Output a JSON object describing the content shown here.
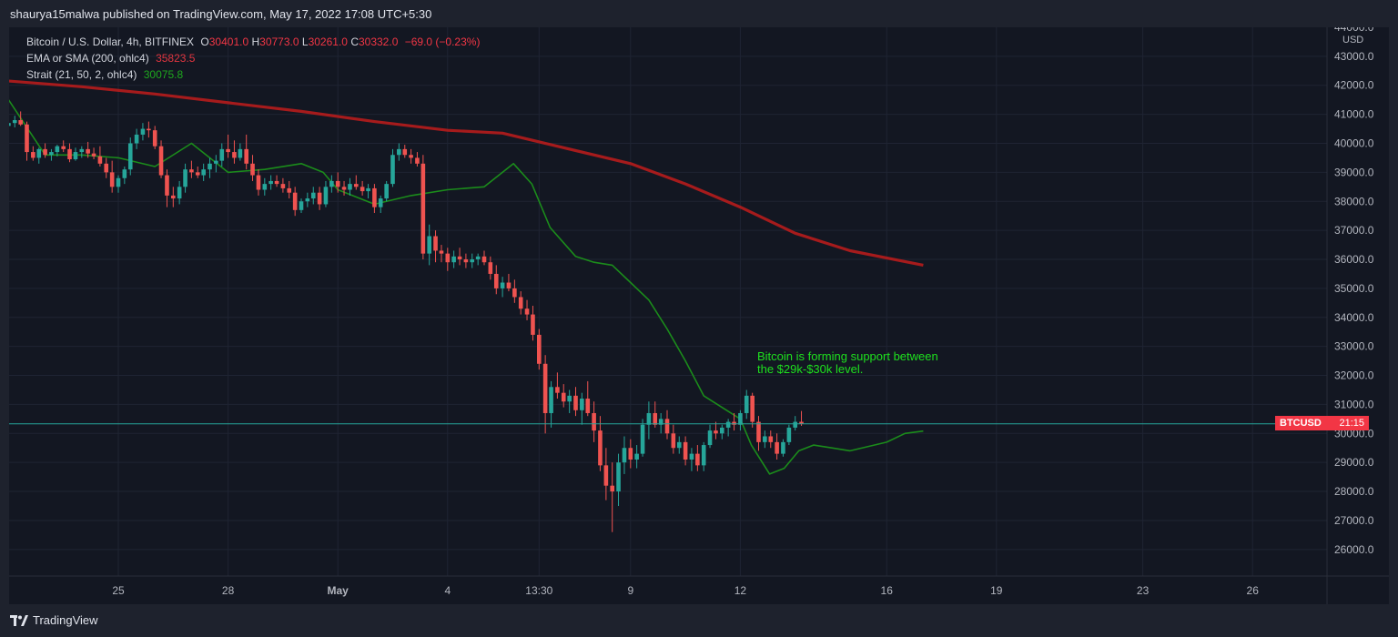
{
  "header": {
    "publish_text": "shaurya15malwa published on TradingView.com, May 17, 2022 17:08 UTC+5:30"
  },
  "legend": {
    "main_label": "Bitcoin / U.S. Dollar, 4h, BITFINEX",
    "o_label": "O",
    "o_value": "30401.0",
    "h_label": "H",
    "h_value": "30773.0",
    "l_label": "L",
    "l_value": "30261.0",
    "c_label": "C",
    "c_value": "30332.0",
    "change": "−69.0 (−0.23%)",
    "ema_label": "EMA or SMA (200, ohlc4)",
    "ema_value": "35823.5",
    "strait_label": "Strait (21, 50, 2, ohlc4)",
    "strait_value": "30075.8"
  },
  "annotation": "Bitcoin is forming support between\nthe $29k-$30k level.",
  "price_tag": {
    "symbol": "BTCUSD",
    "time": "21:15"
  },
  "footer": {
    "logo_text": "TradingView"
  },
  "colors": {
    "up": "#26a69a",
    "down": "#ef5350",
    "ema": "#b71c1c",
    "strait": "#1b8c1b",
    "price_line": "#26a69a",
    "background": "#131722",
    "grid": "#1f2433"
  },
  "chart_data": {
    "type": "candlestick",
    "symbol": "BTCUSD",
    "interval": "4h",
    "exchange": "BITFINEX",
    "currency": "USD",
    "y_ticks": [
      "26000.0",
      "27000.0",
      "28000.0",
      "29000.0",
      "30000.0",
      "31000.0",
      "32000.0",
      "33000.0",
      "34000.0",
      "35000.0",
      "36000.0",
      "37000.0",
      "38000.0",
      "39000.0",
      "40000.0",
      "41000.0",
      "42000.0",
      "43000.0",
      "44000.0"
    ],
    "y_values": [
      26000,
      27000,
      28000,
      29000,
      30000,
      31000,
      32000,
      33000,
      34000,
      35000,
      36000,
      37000,
      38000,
      39000,
      40000,
      41000,
      42000,
      43000,
      44000
    ],
    "ylim": [
      25000,
      44000
    ],
    "x_ticks": [
      {
        "label": "25",
        "bold": false,
        "day": 25
      },
      {
        "label": "28",
        "bold": false,
        "day": 28
      },
      {
        "label": "May",
        "bold": true,
        "day": 31
      },
      {
        "label": "4",
        "bold": false,
        "day": 34
      },
      {
        "label": "13:30",
        "bold": false,
        "day": 36.5
      },
      {
        "label": "9",
        "bold": false,
        "day": 39
      },
      {
        "label": "12",
        "bold": false,
        "day": 42
      },
      {
        "label": "16",
        "bold": false,
        "day": 46
      },
      {
        "label": "19",
        "bold": false,
        "day": 49
      },
      {
        "label": "23",
        "bold": false,
        "day": 53
      },
      {
        "label": "26",
        "bold": false,
        "day": 56
      }
    ],
    "last_price": 30332.0,
    "ema_200": [
      [
        22.0,
        42150
      ],
      [
        24.0,
        41950
      ],
      [
        26.0,
        41700
      ],
      [
        28.0,
        41400
      ],
      [
        30.0,
        41100
      ],
      [
        32.0,
        40750
      ],
      [
        34.0,
        40450
      ],
      [
        35.5,
        40350
      ],
      [
        37.0,
        39900
      ],
      [
        39.0,
        39300
      ],
      [
        40.5,
        38600
      ],
      [
        42.0,
        37800
      ],
      [
        43.5,
        36900
      ],
      [
        45.0,
        36300
      ],
      [
        47.0,
        35800
      ]
    ],
    "strait": [
      [
        22.0,
        41500
      ],
      [
        23.0,
        39600
      ],
      [
        24.0,
        39600
      ],
      [
        25.0,
        39500
      ],
      [
        26.0,
        39200
      ],
      [
        27.0,
        40000
      ],
      [
        28.0,
        39000
      ],
      [
        29.0,
        39100
      ],
      [
        30.0,
        39300
      ],
      [
        30.6,
        39000
      ],
      [
        31.0,
        38400
      ],
      [
        32.0,
        37900
      ],
      [
        33.0,
        38200
      ],
      [
        34.0,
        38400
      ],
      [
        35.0,
        38500
      ],
      [
        35.8,
        39300
      ],
      [
        36.3,
        38600
      ],
      [
        36.8,
        37100
      ],
      [
        37.5,
        36100
      ],
      [
        38.0,
        35900
      ],
      [
        38.5,
        35800
      ],
      [
        39.0,
        35200
      ],
      [
        39.5,
        34600
      ],
      [
        40.0,
        33600
      ],
      [
        40.5,
        32500
      ],
      [
        41.0,
        31300
      ],
      [
        42.0,
        30500
      ],
      [
        42.3,
        29600
      ],
      [
        42.8,
        28600
      ],
      [
        43.2,
        28800
      ],
      [
        43.6,
        29400
      ],
      [
        44.0,
        29600
      ],
      [
        44.5,
        29500
      ],
      [
        45.0,
        29400
      ],
      [
        46.0,
        29700
      ],
      [
        46.5,
        30000
      ],
      [
        47.0,
        30080
      ]
    ],
    "candles": [
      [
        22.0,
        40600,
        40850,
        40500,
        40700
      ],
      [
        22.17,
        40700,
        40950,
        40550,
        40800
      ],
      [
        22.33,
        40800,
        41100,
        40600,
        40650
      ],
      [
        22.5,
        40650,
        40750,
        39400,
        39700
      ],
      [
        22.67,
        39700,
        39900,
        39400,
        39500
      ],
      [
        22.83,
        39500,
        39850,
        39300,
        39800
      ],
      [
        23.0,
        39800,
        40000,
        39500,
        39600
      ],
      [
        23.17,
        39600,
        39800,
        39400,
        39700
      ],
      [
        23.33,
        39700,
        39950,
        39550,
        39900
      ],
      [
        23.5,
        39900,
        40100,
        39700,
        39800
      ],
      [
        23.67,
        39800,
        40000,
        39350,
        39450
      ],
      [
        23.83,
        39450,
        39850,
        39400,
        39700
      ],
      [
        24.0,
        39700,
        39900,
        39500,
        39800
      ],
      [
        24.17,
        39800,
        40050,
        39500,
        39650
      ],
      [
        24.33,
        39650,
        39850,
        39450,
        39550
      ],
      [
        24.5,
        39550,
        39900,
        39200,
        39300
      ],
      [
        24.67,
        39300,
        39500,
        38800,
        39000
      ],
      [
        24.83,
        39000,
        39400,
        38300,
        38500
      ],
      [
        25.0,
        38500,
        38900,
        38300,
        38800
      ],
      [
        25.17,
        38800,
        39200,
        38600,
        39100
      ],
      [
        25.33,
        39100,
        40200,
        38900,
        40000
      ],
      [
        25.5,
        40000,
        40500,
        39800,
        40300
      ],
      [
        25.67,
        40300,
        40700,
        40100,
        40500
      ],
      [
        25.83,
        40500,
        40750,
        40200,
        40450
      ],
      [
        26.0,
        40450,
        40600,
        39800,
        39900
      ],
      [
        26.17,
        39900,
        40100,
        38800,
        38900
      ],
      [
        26.33,
        38900,
        39100,
        37800,
        38200
      ],
      [
        26.5,
        38200,
        38500,
        37800,
        38100
      ],
      [
        26.67,
        38100,
        38700,
        37900,
        38500
      ],
      [
        26.83,
        38500,
        39300,
        38300,
        39100
      ],
      [
        27.0,
        39100,
        39400,
        38800,
        39000
      ],
      [
        27.17,
        39000,
        39200,
        38800,
        38900
      ],
      [
        27.33,
        38900,
        39300,
        38700,
        39100
      ],
      [
        27.5,
        39100,
        39500,
        38800,
        39300
      ],
      [
        27.67,
        39300,
        39600,
        39000,
        39400
      ],
      [
        27.83,
        39400,
        40000,
        39200,
        39800
      ],
      [
        28.0,
        39800,
        40300,
        39500,
        39700
      ],
      [
        28.17,
        39700,
        40100,
        39300,
        39500
      ],
      [
        28.33,
        39500,
        40000,
        39400,
        39800
      ],
      [
        28.5,
        39800,
        40300,
        39100,
        39300
      ],
      [
        28.67,
        39300,
        39600,
        38700,
        38900
      ],
      [
        28.83,
        38900,
        39100,
        38200,
        38400
      ],
      [
        29.0,
        38400,
        38800,
        38200,
        38600
      ],
      [
        29.17,
        38600,
        38900,
        38400,
        38700
      ],
      [
        29.33,
        38700,
        38900,
        38500,
        38600
      ],
      [
        29.5,
        38600,
        38800,
        38300,
        38450
      ],
      [
        29.67,
        38450,
        38700,
        38100,
        38300
      ],
      [
        29.83,
        38300,
        38500,
        37500,
        37700
      ],
      [
        30.0,
        37700,
        38100,
        37600,
        38000
      ],
      [
        30.17,
        38000,
        38300,
        37800,
        38100
      ],
      [
        30.33,
        38100,
        38500,
        37900,
        38300
      ],
      [
        30.5,
        38300,
        38500,
        37700,
        37900
      ],
      [
        30.67,
        37900,
        38700,
        37800,
        38500
      ],
      [
        30.83,
        38500,
        38900,
        38300,
        38700
      ],
      [
        31.0,
        38700,
        39000,
        38300,
        38500
      ],
      [
        31.17,
        38500,
        38700,
        38200,
        38400
      ],
      [
        31.33,
        38400,
        38800,
        38200,
        38600
      ],
      [
        31.5,
        38600,
        38900,
        38400,
        38500
      ],
      [
        31.67,
        38500,
        38700,
        38200,
        38350
      ],
      [
        31.83,
        38350,
        38600,
        38100,
        38450
      ],
      [
        32.0,
        38450,
        38600,
        37600,
        37800
      ],
      [
        32.17,
        37800,
        38200,
        37600,
        38100
      ],
      [
        32.33,
        38100,
        38700,
        38000,
        38600
      ],
      [
        32.5,
        38600,
        39800,
        38500,
        39600
      ],
      [
        32.67,
        39600,
        40000,
        39400,
        39800
      ],
      [
        32.83,
        39800,
        39950,
        39500,
        39600
      ],
      [
        33.0,
        39600,
        39800,
        39300,
        39500
      ],
      [
        33.17,
        39500,
        39700,
        39200,
        39300
      ],
      [
        33.33,
        39300,
        39600,
        36000,
        36200
      ],
      [
        33.5,
        36200,
        37200,
        35800,
        36800
      ],
      [
        33.67,
        36800,
        37000,
        35900,
        36300
      ],
      [
        33.83,
        36300,
        36500,
        35900,
        36200
      ],
      [
        34.0,
        36200,
        36400,
        35600,
        35900
      ],
      [
        34.17,
        35900,
        36300,
        35700,
        36100
      ],
      [
        34.33,
        36100,
        36400,
        35800,
        36000
      ],
      [
        34.5,
        36000,
        36200,
        35700,
        35900
      ],
      [
        34.67,
        35900,
        36200,
        35700,
        36000
      ],
      [
        34.83,
        36000,
        36200,
        35800,
        36100
      ],
      [
        35.0,
        36100,
        36300,
        35800,
        35900
      ],
      [
        35.17,
        35900,
        36100,
        35300,
        35500
      ],
      [
        35.33,
        35500,
        35800,
        34800,
        35000
      ],
      [
        35.5,
        35000,
        35400,
        34700,
        35200
      ],
      [
        35.67,
        35200,
        35500,
        34900,
        35000
      ],
      [
        35.83,
        35000,
        35300,
        34500,
        34700
      ],
      [
        36.0,
        34700,
        34900,
        34100,
        34300
      ],
      [
        36.17,
        34300,
        34600,
        33900,
        34100
      ],
      [
        36.33,
        34100,
        34400,
        33200,
        33400
      ],
      [
        36.5,
        33400,
        33600,
        32200,
        32400
      ],
      [
        36.67,
        32400,
        32700,
        30000,
        30700
      ],
      [
        36.83,
        30700,
        31800,
        30200,
        31600
      ],
      [
        37.0,
        31600,
        32100,
        31200,
        31400
      ],
      [
        37.17,
        31400,
        31700,
        30900,
        31100
      ],
      [
        37.33,
        31100,
        31500,
        30700,
        31300
      ],
      [
        37.5,
        31300,
        31600,
        30600,
        30800
      ],
      [
        37.67,
        30800,
        31400,
        30300,
        31200
      ],
      [
        37.83,
        31200,
        31800,
        30600,
        30700
      ],
      [
        38.0,
        30700,
        31100,
        29700,
        30100
      ],
      [
        38.17,
        30100,
        30600,
        28700,
        28900
      ],
      [
        38.33,
        28900,
        29500,
        27700,
        28200
      ],
      [
        38.5,
        28200,
        29000,
        26600,
        28000
      ],
      [
        38.67,
        28000,
        29300,
        27500,
        29000
      ],
      [
        38.83,
        29000,
        29900,
        28600,
        29500
      ],
      [
        39.0,
        29500,
        29800,
        28800,
        29100
      ],
      [
        39.17,
        29100,
        29600,
        28800,
        29300
      ],
      [
        39.33,
        29300,
        30500,
        29200,
        30300
      ],
      [
        39.5,
        30300,
        31100,
        29800,
        30700
      ],
      [
        39.67,
        30700,
        31100,
        30200,
        30300
      ],
      [
        39.83,
        30300,
        30700,
        30000,
        30500
      ],
      [
        40.0,
        30500,
        30800,
        29800,
        30000
      ],
      [
        40.17,
        30000,
        30300,
        29300,
        29500
      ],
      [
        40.33,
        29500,
        29900,
        29300,
        29700
      ],
      [
        40.5,
        29700,
        29900,
        28900,
        29100
      ],
      [
        40.67,
        29100,
        29500,
        28700,
        29300
      ],
      [
        40.83,
        29300,
        29600,
        28700,
        28900
      ],
      [
        41.0,
        28900,
        29700,
        28700,
        29600
      ],
      [
        41.17,
        29600,
        30300,
        29500,
        30100
      ],
      [
        41.33,
        30100,
        30400,
        29800,
        30000
      ],
      [
        41.5,
        30000,
        30300,
        29800,
        30200
      ],
      [
        41.67,
        30200,
        30500,
        29900,
        30400
      ],
      [
        41.83,
        30400,
        30700,
        30100,
        30300
      ],
      [
        42.0,
        30300,
        30800,
        30100,
        30700
      ],
      [
        42.17,
        30700,
        31500,
        30500,
        31300
      ],
      [
        42.33,
        31300,
        31400,
        30200,
        30400
      ],
      [
        42.5,
        30400,
        30600,
        29400,
        29700
      ],
      [
        42.67,
        29700,
        30100,
        29500,
        29900
      ],
      [
        42.83,
        29900,
        30100,
        29500,
        29700
      ],
      [
        43.0,
        29700,
        30000,
        29100,
        29300
      ],
      [
        43.17,
        29300,
        29800,
        29200,
        29700
      ],
      [
        43.33,
        29700,
        30300,
        29600,
        30200
      ],
      [
        43.5,
        30200,
        30600,
        30100,
        30400
      ],
      [
        43.67,
        30401,
        30773,
        30261,
        30332
      ]
    ]
  }
}
